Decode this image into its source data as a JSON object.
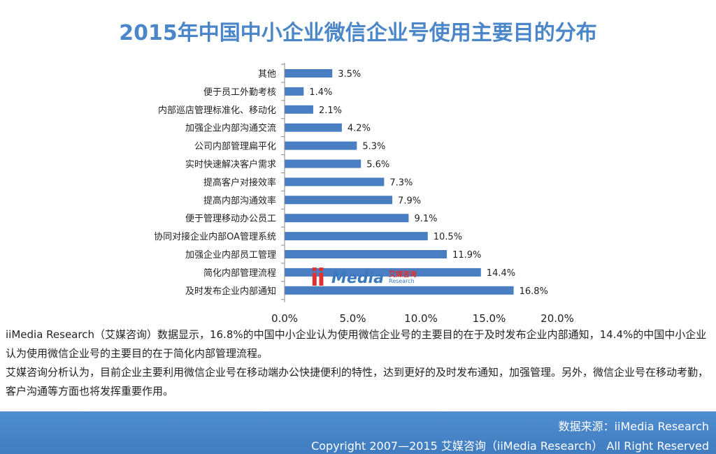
{
  "header": {
    "title": "2015年中国中小企业微信企业号使用主要目的分布"
  },
  "chart_data": {
    "type": "bar",
    "orientation": "horizontal",
    "title": "2015年中国中小企业微信企业号使用主要目的分布",
    "xlabel": "",
    "ylabel": "",
    "xlim": [
      0,
      20
    ],
    "x_ticks": [
      "0.0%",
      "5.0%",
      "10.0%",
      "15.0%",
      "20.0%"
    ],
    "bar_color": "#4a7ec2",
    "grid": false,
    "categories": [
      "其他",
      "便于员工外勤考核",
      "内部巡店管理标准化、移动化",
      "加强企业内部沟通交流",
      "公司内部管理扁平化",
      "实时快速解决客户需求",
      "提高客户对接效率",
      "提高内部沟通效率",
      "便于管理移动办公员工",
      "协同对接企业内部OA管理系统",
      "加强企业内部员工管理",
      "简化内部管理流程",
      "及时发布企业内部通知"
    ],
    "values": [
      3.5,
      1.4,
      2.1,
      4.2,
      5.3,
      5.6,
      7.3,
      7.9,
      9.1,
      10.5,
      11.9,
      14.4,
      16.8
    ],
    "value_labels": [
      "3.5%",
      "1.4%",
      "2.1%",
      "4.2%",
      "5.3%",
      "5.6%",
      "7.3%",
      "7.9%",
      "9.1%",
      "10.5%",
      "11.9%",
      "14.4%",
      "16.8%"
    ]
  },
  "watermark": {
    "mark": "ii",
    "name": "Media",
    "cn": "艾媒咨询",
    "sub": "Research"
  },
  "description": {
    "p1": "iiMedia Research（艾媒咨询）数据显示，16.8%的中国中小企业认为使用微信企业号的主要目的在于及时发布企业内部通知，14.4%的中国中小企业认为使用微信企业号的主要目的在于简化内部管理流程。",
    "p2": "艾媒咨询分析认为，目前企业主要利用微信企业号在移动端办公快捷便利的特性，达到更好的及时发布通知，加强管理。另外，微信企业号在移动考勤，客户沟通等方面也将发挥重要作用。"
  },
  "footer": {
    "source": "数据来源：iiMedia Research",
    "copyright": "Copyright 2007—2015 艾媒咨询（iiMedia Research） All Right Reserved"
  }
}
